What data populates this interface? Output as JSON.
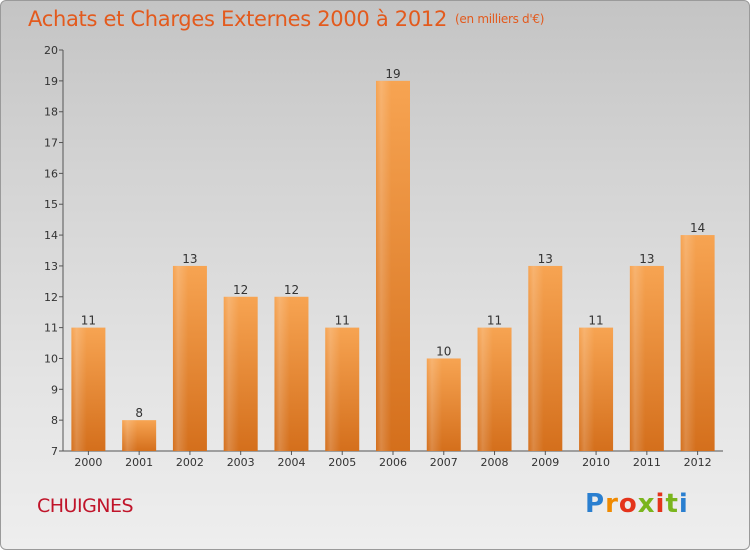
{
  "title": "Achats et Charges Externes 2000 à 2012",
  "unit": "(en milliers d'€)",
  "commune": "CHUIGNES",
  "logo": [
    "P",
    "r",
    "o",
    "x",
    "i",
    "t",
    "i"
  ],
  "colors": {
    "bar_top": "#f7a452",
    "bar_bottom": "#d46f1c",
    "title": "#e35a1d",
    "commune": "#c0142a"
  },
  "chart_data": {
    "type": "bar",
    "categories": [
      "2000",
      "2001",
      "2002",
      "2003",
      "2004",
      "2005",
      "2006",
      "2007",
      "2008",
      "2009",
      "2010",
      "2011",
      "2012"
    ],
    "values": [
      11,
      8,
      13,
      12,
      12,
      11,
      19,
      10,
      11,
      13,
      11,
      13,
      14
    ],
    "ylim": [
      7,
      20
    ],
    "yticks": [
      7,
      8,
      9,
      10,
      11,
      12,
      13,
      14,
      15,
      16,
      17,
      18,
      19,
      20
    ],
    "title": "Achats et Charges Externes 2000 à 2012",
    "xlabel": "",
    "ylabel": "",
    "grid": false
  }
}
